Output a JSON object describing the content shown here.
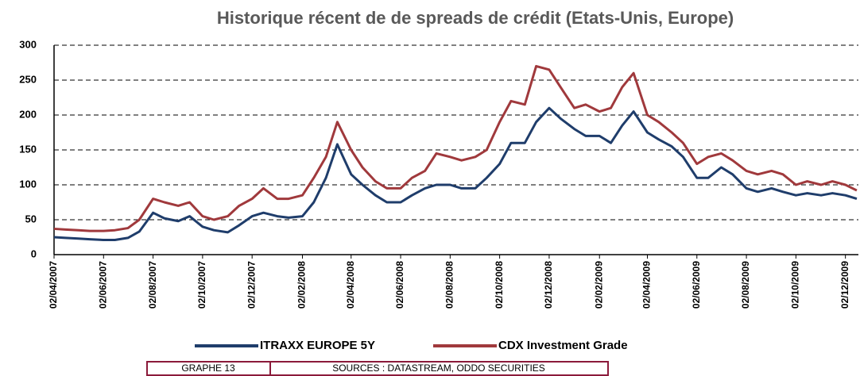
{
  "chart_data": {
    "type": "line",
    "title": "Historique récent de de spreads de crédit (Etats-Unis, Europe)",
    "x": [
      "02/04/2007",
      "16/04/2007",
      "02/05/2007",
      "16/05/2007",
      "02/06/2007",
      "16/06/2007",
      "02/07/2007",
      "16/07/2007",
      "02/08/2007",
      "16/08/2007",
      "02/09/2007",
      "16/09/2007",
      "02/10/2007",
      "16/10/2007",
      "02/11/2007",
      "16/11/2007",
      "02/12/2007",
      "16/12/2007",
      "02/01/2008",
      "16/01/2008",
      "02/02/2008",
      "16/02/2008",
      "02/03/2008",
      "16/03/2008",
      "02/04/2008",
      "16/04/2008",
      "02/05/2008",
      "16/05/2008",
      "02/06/2008",
      "16/06/2008",
      "02/07/2008",
      "16/07/2008",
      "02/08/2008",
      "16/08/2008",
      "02/09/2008",
      "16/09/2008",
      "02/10/2008",
      "16/10/2008",
      "02/11/2008",
      "16/11/2008",
      "02/12/2008",
      "16/12/2008",
      "02/01/2009",
      "16/01/2009",
      "02/02/2009",
      "16/02/2009",
      "02/03/2009",
      "16/03/2009",
      "02/04/2009",
      "16/04/2009",
      "02/05/2009",
      "16/05/2009",
      "02/06/2009",
      "16/06/2009",
      "02/07/2009",
      "16/07/2009",
      "02/08/2009",
      "16/08/2009",
      "02/09/2009",
      "16/09/2009",
      "02/10/2009",
      "16/10/2009",
      "02/11/2009",
      "16/11/2009",
      "02/12/2009",
      "16/12/2009"
    ],
    "series": [
      {
        "name": "ITRAXX EUROPE 5Y",
        "color": "#1f3d6b",
        "values": [
          25,
          24,
          23,
          22,
          21,
          21,
          24,
          33,
          60,
          52,
          48,
          55,
          40,
          35,
          32,
          42,
          55,
          60,
          55,
          53,
          55,
          75,
          110,
          158,
          115,
          100,
          85,
          75,
          75,
          85,
          95,
          100,
          100,
          95,
          95,
          110,
          130,
          160,
          160,
          190,
          210,
          195,
          180,
          170,
          170,
          160,
          185,
          205,
          175,
          165,
          155,
          140,
          110,
          110,
          125,
          115,
          95,
          90,
          95,
          90,
          85,
          88,
          85,
          88,
          85,
          80
        ]
      },
      {
        "name": "CDX Investment Grade",
        "color": "#a0393c",
        "values": [
          37,
          36,
          35,
          34,
          34,
          35,
          38,
          50,
          80,
          75,
          70,
          75,
          55,
          50,
          55,
          70,
          80,
          95,
          80,
          80,
          85,
          110,
          140,
          190,
          150,
          125,
          105,
          95,
          95,
          110,
          120,
          145,
          140,
          135,
          140,
          150,
          190,
          220,
          215,
          270,
          265,
          240,
          210,
          215,
          205,
          210,
          240,
          260,
          200,
          190,
          175,
          160,
          130,
          140,
          145,
          135,
          120,
          115,
          120,
          115,
          100,
          105,
          100,
          105,
          100,
          92
        ]
      }
    ],
    "xlim": [
      "02/04/2007",
      "18/12/2009"
    ],
    "xticks": [
      "02/04/2007",
      "02/06/2007",
      "02/08/2007",
      "02/10/2007",
      "02/12/2007",
      "02/02/2008",
      "02/04/2008",
      "02/06/2008",
      "02/08/2008",
      "02/10/2008",
      "02/12/2008",
      "02/02/2009",
      "02/04/2009",
      "02/06/2009",
      "02/08/2009",
      "02/10/2009",
      "02/12/2009"
    ],
    "ylim": [
      0,
      300
    ],
    "yticks": [
      0,
      50,
      100,
      150,
      200,
      250,
      300
    ],
    "grid": true,
    "footer": [
      "GRAPHE 13",
      "SOURCES : DATASTREAM, ODDO SECURITIES"
    ]
  }
}
